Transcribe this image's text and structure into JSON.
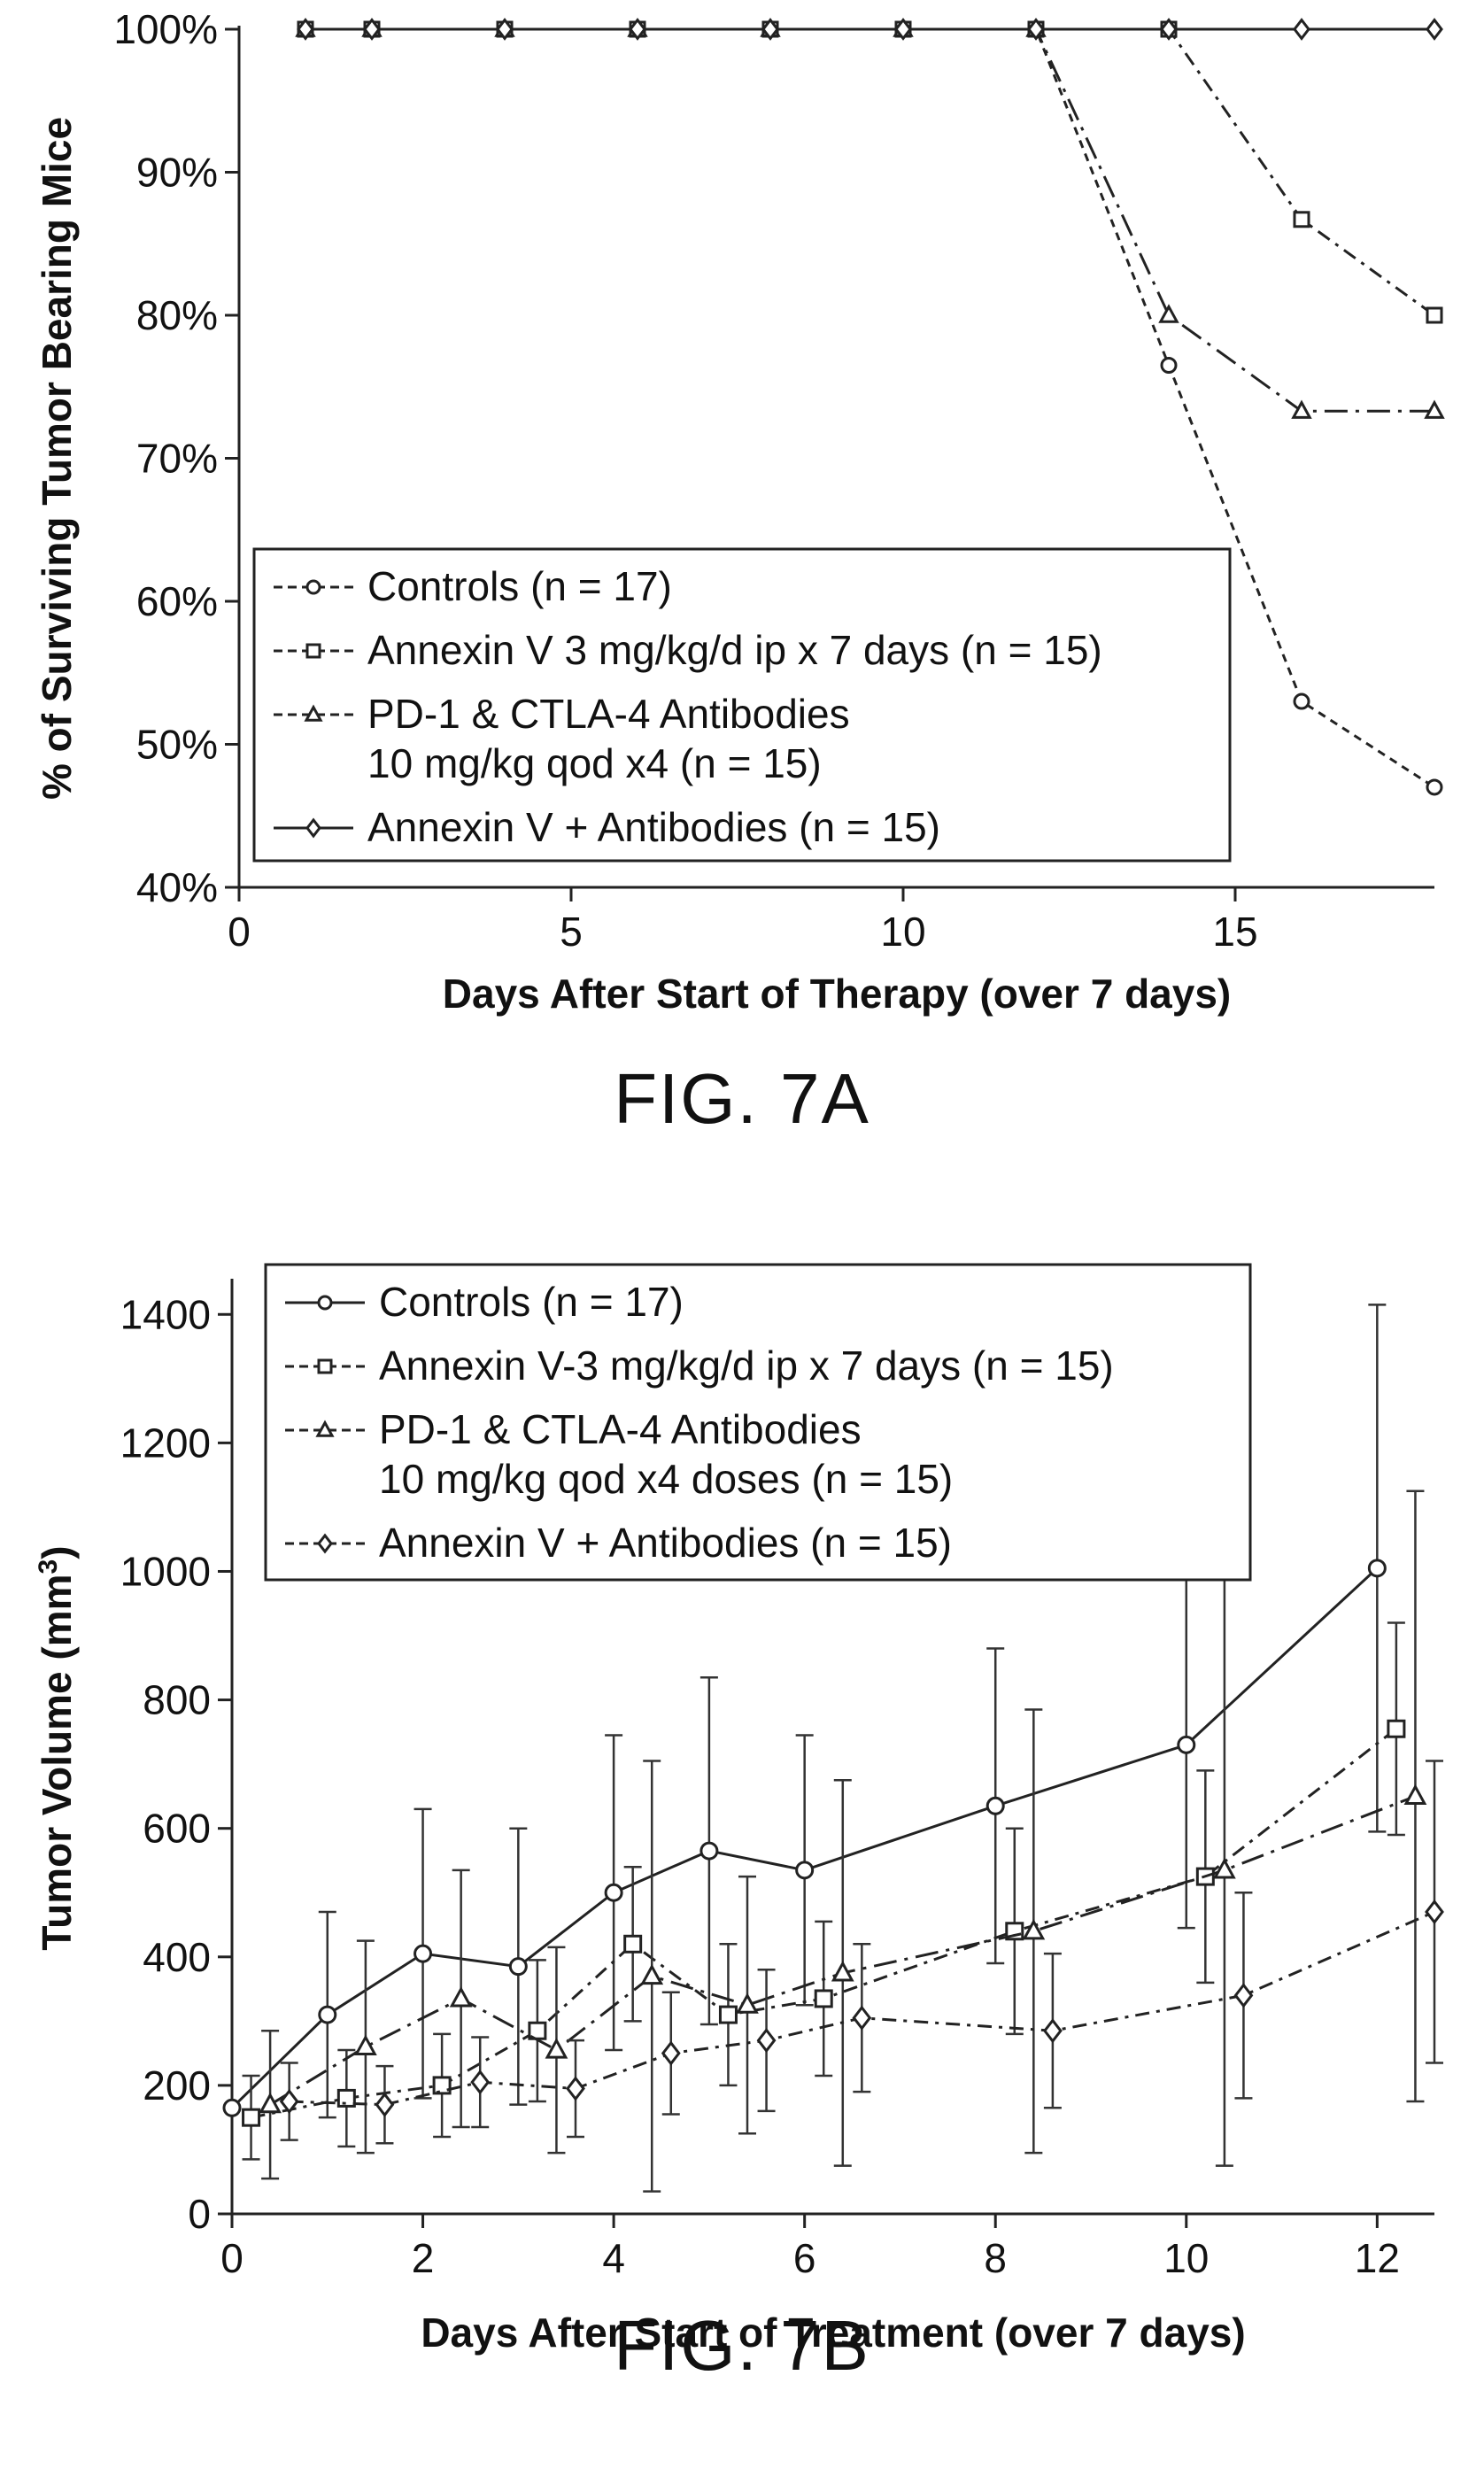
{
  "figures": [
    {
      "caption": "FIG. 7A",
      "chart_data": {
        "type": "line",
        "xlabel": "Days After Start of Therapy (over 7 days)",
        "ylabel": "% of Surviving Tumor Bearing Mice",
        "xlim": [
          0,
          18
        ],
        "ylim": [
          40,
          100
        ],
        "x_ticks": [
          0,
          5,
          10,
          15
        ],
        "x_tick_labels": [
          "0",
          "5",
          "10",
          "15"
        ],
        "y_ticks": [
          40,
          50,
          60,
          70,
          80,
          90,
          100
        ],
        "y_tick_labels": [
          "40%",
          "50%",
          "60%",
          "70%",
          "80%",
          "90%",
          "100%"
        ],
        "grid": false,
        "legend_position": "bottom-left",
        "series": [
          {
            "name": "Controls (n = 17)",
            "marker": "circle",
            "dash": "short-dash",
            "x": [
              1,
              2,
              4,
              6,
              8,
              10,
              12,
              14,
              16,
              18
            ],
            "y": [
              100,
              100,
              100,
              100,
              100,
              100,
              100,
              76.5,
              53,
              47
            ]
          },
          {
            "name": "Annexin V 3 mg/kg/d ip x 7 days (n = 15)",
            "marker": "square",
            "dash": "dash-dot",
            "x": [
              1,
              2,
              4,
              6,
              8,
              10,
              12,
              14,
              16,
              18
            ],
            "y": [
              100,
              100,
              100,
              100,
              100,
              100,
              100,
              100,
              86.7,
              80
            ]
          },
          {
            "name": "PD-1 & CTLA-4 Antibodies\n10 mg/kg qod x4 (n = 15)",
            "marker": "triangle",
            "dash": "long-dash-dot",
            "x": [
              1,
              2,
              4,
              6,
              8,
              10,
              12,
              14,
              16,
              18
            ],
            "y": [
              100,
              100,
              100,
              100,
              100,
              100,
              100,
              80,
              73.3,
              73.3
            ]
          },
          {
            "name": "Annexin V + Antibodies (n = 15)",
            "marker": "diamond",
            "dash": "solid",
            "x": [
              1,
              2,
              4,
              6,
              8,
              10,
              12,
              14,
              16,
              18
            ],
            "y": [
              100,
              100,
              100,
              100,
              100,
              100,
              100,
              100,
              100,
              100
            ]
          }
        ]
      }
    },
    {
      "caption": "FIG. 7B",
      "chart_data": {
        "type": "line",
        "xlabel": "Days After Start of Treatment (over 7 days)",
        "ylabel": "Tumor Volume (mm",
        "ylabel_superscript": "3",
        "ylabel_close": ")",
        "xlim": [
          0,
          12.6
        ],
        "ylim": [
          0,
          1450
        ],
        "x_ticks": [
          0,
          2,
          4,
          6,
          8,
          10,
          12
        ],
        "x_tick_labels": [
          "0",
          "2",
          "4",
          "6",
          "8",
          "10",
          "12"
        ],
        "y_ticks": [
          0,
          200,
          400,
          600,
          800,
          1000,
          1200,
          1400
        ],
        "y_tick_labels": [
          "0",
          "200",
          "400",
          "600",
          "800",
          "1000",
          "1200",
          "1400"
        ],
        "grid": false,
        "legend_position": "top-left",
        "error_bars": true,
        "series": [
          {
            "name": "Controls (n = 17)",
            "marker": "circle",
            "dash": "solid",
            "x": [
              0,
              1,
              2,
              3,
              4,
              5,
              6,
              8,
              10,
              12
            ],
            "y": [
              165,
              310,
              405,
              385,
              500,
              565,
              535,
              635,
              730,
              1005
            ],
            "err": [
              0,
              160,
              225,
              215,
              245,
              270,
              210,
              245,
              285,
              410
            ]
          },
          {
            "name": "Annexin V-3 mg/kg/d ip x 7 days (n = 15)",
            "marker": "square",
            "dash": "dash-dot",
            "x": [
              0.2,
              1.2,
              2.2,
              3.2,
              4.2,
              5.2,
              6.2,
              8.2,
              10.2,
              12.2
            ],
            "y": [
              150,
              180,
              200,
              285,
              420,
              310,
              335,
              440,
              525,
              755
            ],
            "err": [
              65,
              75,
              80,
              110,
              120,
              110,
              120,
              160,
              165,
              165
            ]
          },
          {
            "name": "PD-1 & CTLA-4 Antibodies\n10 mg/kg qod x4 doses (n = 15)",
            "marker": "triangle",
            "dash": "long-dash-dot",
            "x": [
              0.4,
              1.4,
              2.4,
              3.4,
              4.4,
              5.4,
              6.4,
              8.4,
              10.4,
              12.4
            ],
            "y": [
              170,
              260,
              335,
              255,
              370,
              325,
              375,
              440,
              535,
              650
            ],
            "err": [
              115,
              165,
              200,
              160,
              335,
              200,
              300,
              345,
              460,
              475
            ]
          },
          {
            "name": "Annexin V + Antibodies (n = 15)",
            "marker": "diamond",
            "dash": "dash-dot",
            "x": [
              0.6,
              1.6,
              2.6,
              3.6,
              4.6,
              5.6,
              6.6,
              8.6,
              10.6,
              12.6
            ],
            "y": [
              175,
              170,
              205,
              195,
              250,
              270,
              305,
              285,
              340,
              470
            ],
            "err": [
              60,
              60,
              70,
              75,
              95,
              110,
              115,
              120,
              160,
              235
            ]
          }
        ]
      }
    }
  ]
}
